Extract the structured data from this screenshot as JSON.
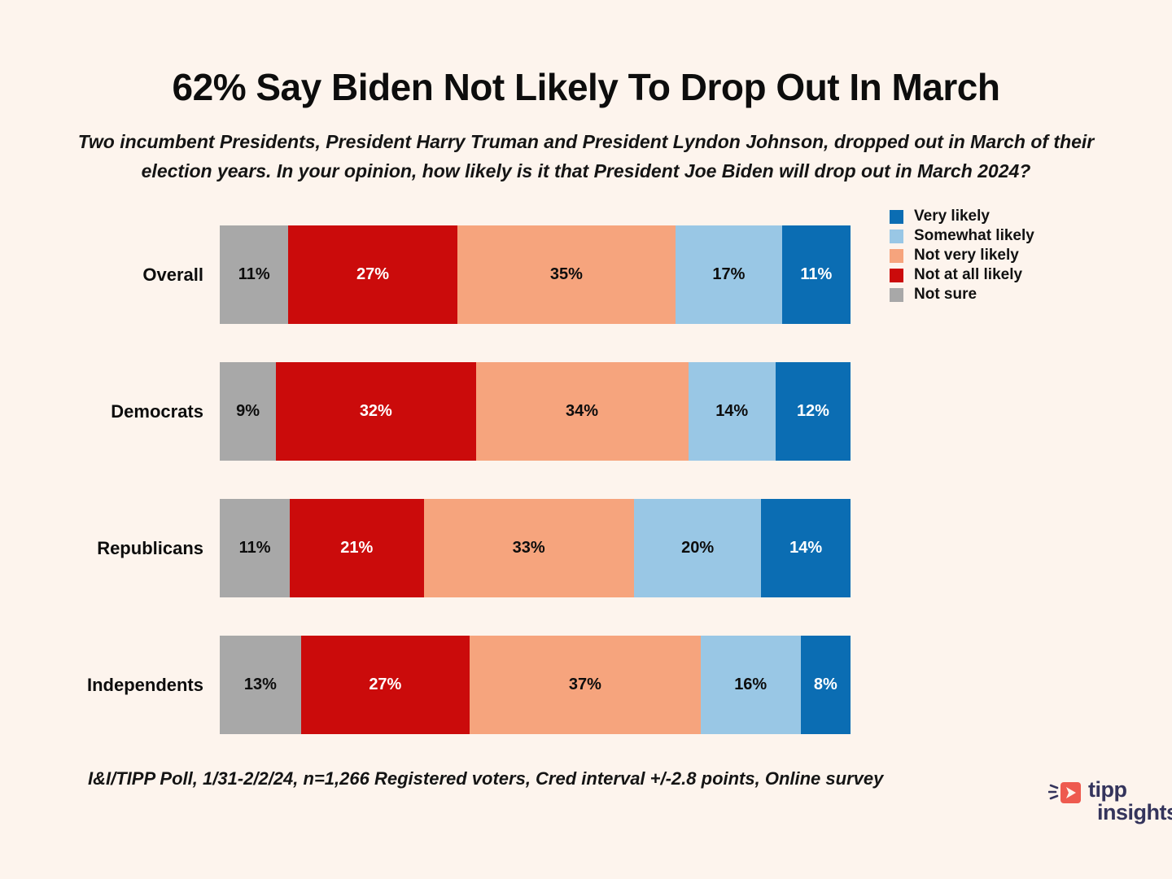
{
  "title": "62% Say Biden Not Likely To Drop Out In March",
  "subtitle": "Two incumbent Presidents, President Harry Truman and President Lyndon Johnson, dropped out in March of their election years. In your opinion, how likely is it that President Joe Biden will drop out in March 2024?",
  "footer": "I&I/TIPP Poll, 1/31-2/2/24, n=1,266 Registered voters, Cred interval +/-2.8 points, Online survey",
  "logo": {
    "line1": "tipp",
    "line2": "insights",
    "icon": "tipp-arrow-icon",
    "text_color": "#34345c",
    "icon_color": "#ee5a4f"
  },
  "colors": {
    "background": "#fdf4ed",
    "very_likely": "#0b6db3",
    "somewhat_likely": "#99c7e5",
    "not_very_likely": "#f6a47d",
    "not_at_all_likely": "#cb0b0b",
    "not_sure": "#a8a8a8"
  },
  "chart_data": {
    "type": "bar",
    "stacked": true,
    "orientation": "horizontal",
    "value_suffix": "%",
    "categories": [
      "Overall",
      "Democrats",
      "Republicans",
      "Independents"
    ],
    "series": [
      {
        "name": "Not sure",
        "color": "#a8a8a8",
        "text_color": "#0d0d0d",
        "values": [
          11,
          9,
          11,
          13
        ]
      },
      {
        "name": "Not at all likely",
        "color": "#cb0b0b",
        "text_color": "#ffffff",
        "values": [
          27,
          32,
          21,
          27
        ]
      },
      {
        "name": "Not very likely",
        "color": "#f6a47d",
        "text_color": "#0d0d0d",
        "values": [
          35,
          34,
          33,
          37
        ]
      },
      {
        "name": "Somewhat likely",
        "color": "#99c7e5",
        "text_color": "#0d0d0d",
        "values": [
          17,
          14,
          20,
          16
        ]
      },
      {
        "name": "Very likely",
        "color": "#0b6db3",
        "text_color": "#ffffff",
        "values": [
          11,
          12,
          14,
          8
        ]
      }
    ],
    "legend_position": "top-right",
    "legend": [
      {
        "label": "Very likely",
        "color": "#0b6db3"
      },
      {
        "label": "Somewhat likely",
        "color": "#99c7e5"
      },
      {
        "label": "Not very likely",
        "color": "#f6a47d"
      },
      {
        "label": "Not at all likely",
        "color": "#cb0b0b"
      },
      {
        "label": "Not sure",
        "color": "#a8a8a8"
      }
    ]
  }
}
